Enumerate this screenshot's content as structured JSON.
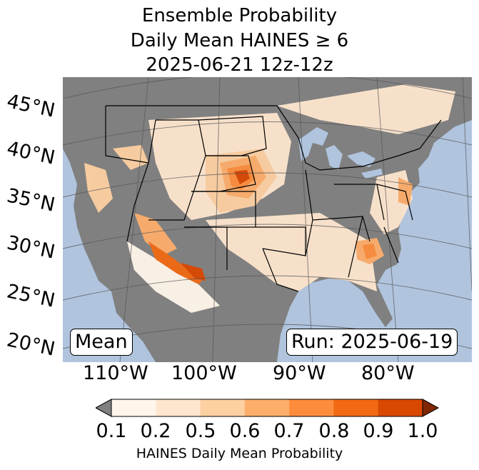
{
  "title": {
    "line1": "Ensemble Probability",
    "line2": "Daily Mean HAINES ≥ 6",
    "line3": "2025-06-21 12z-12z"
  },
  "map": {
    "ocean_color": "#b0c4de",
    "land_color": "#808080",
    "lat_labels": [
      "45°N",
      "40°N",
      "35°N",
      "30°N",
      "25°N",
      "20°N"
    ],
    "lon_labels": [
      "110°W",
      "100°W",
      "90°W",
      "80°W"
    ]
  },
  "labels": {
    "stat": "Mean",
    "run": "Run: 2025-06-19"
  },
  "colorbar": {
    "label": "HAINES Daily Mean Probability",
    "ticks": [
      "0.1",
      "0.2",
      "0.5",
      "0.6",
      "0.7",
      "0.8",
      "0.9",
      "1.0"
    ],
    "under_color": "#808080",
    "over_color": "#7f2704",
    "colors": [
      "#fff5eb",
      "#fee6ce",
      "#fdd0a2",
      "#fdae6b",
      "#fd8d3c",
      "#f16913",
      "#d94801"
    ]
  }
}
